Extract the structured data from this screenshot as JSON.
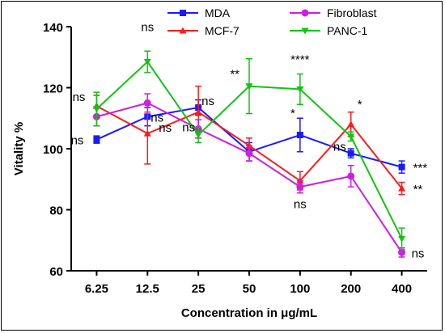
{
  "chart_data": {
    "type": "line",
    "xlabel": "Concentration in μg/mL",
    "ylabel": "Vitality %",
    "categories": [
      "6.25",
      "12.5",
      "25",
      "50",
      "100",
      "200",
      "400"
    ],
    "ylim": [
      60,
      140
    ],
    "yticks": [
      60,
      80,
      100,
      120,
      140
    ],
    "grid": false,
    "legend_position": "top",
    "series": [
      {
        "name": "MDA",
        "color": "#1a1aff",
        "marker": "square",
        "values": [
          103,
          110.5,
          113.5,
          99,
          104.5,
          98.5,
          94
        ],
        "errors": [
          1.2,
          3,
          2.5,
          3,
          5.5,
          1.5,
          2
        ],
        "annotations": [
          "ns",
          "ns",
          "ns",
          "",
          "*",
          "ns",
          "***"
        ]
      },
      {
        "name": "MCF-7",
        "color": "#ff1a1a",
        "marker": "triangle-up",
        "values": [
          114,
          105,
          112,
          101,
          89.5,
          108,
          87
        ],
        "errors": [
          3.5,
          10,
          8.5,
          2.5,
          3,
          4,
          2
        ],
        "annotations": [
          "ns",
          "ns",
          "ns",
          "",
          "ns",
          "*",
          "**"
        ]
      },
      {
        "name": "Fibroblast",
        "color": "#cc1fe0",
        "marker": "circle",
        "values": [
          110.5,
          115,
          106.5,
          98.5,
          87.5,
          91,
          66
        ],
        "errors": [
          3,
          3,
          3,
          2.5,
          2,
          3.5,
          1.5
        ],
        "annotations": [
          "",
          "",
          "",
          "",
          "",
          "",
          "ns"
        ]
      },
      {
        "name": "PANC-1",
        "color": "#11c411",
        "marker": "triangle-down",
        "values": [
          113,
          128.5,
          104.5,
          120.5,
          119.5,
          104,
          70.5
        ],
        "errors": [
          5.5,
          3.5,
          2.5,
          9,
          5,
          1.5,
          3.5
        ],
        "annotations": [
          "",
          "ns",
          "",
          "**",
          "****",
          "",
          ""
        ]
      }
    ]
  }
}
